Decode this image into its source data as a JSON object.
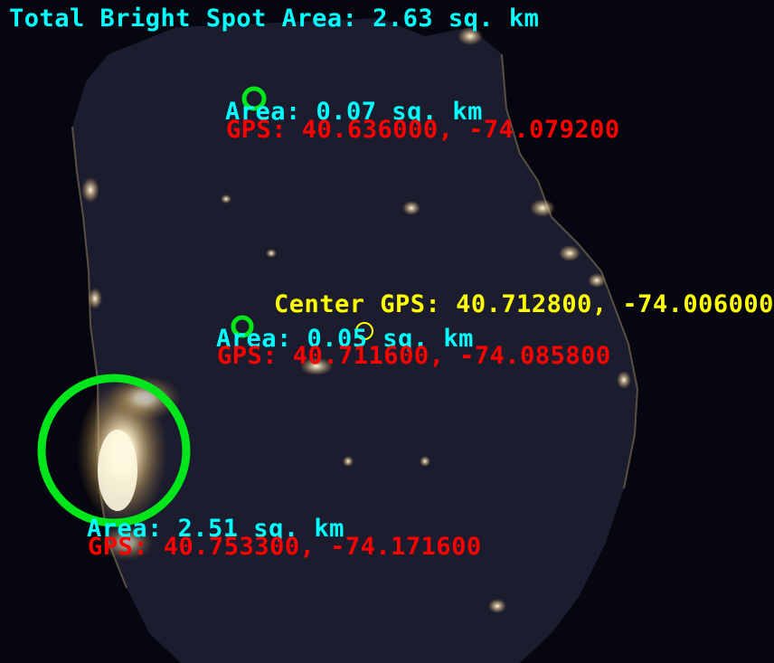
{
  "colors": {
    "background": "#05060f",
    "land": "#1b1c2e",
    "city_light": "#ffeec0",
    "spot_circle": "#00e61a",
    "center_marker": "#ffff00",
    "area_text": "#00ffff",
    "gps_text": "#ff0000",
    "center_text": "#ffff00"
  },
  "total_area_label": "Total Bright Spot Area: 2.63 sq. km",
  "center": {
    "label": "Center GPS: 40.712800, -74.006000"
  },
  "spots": [
    {
      "area_label": "Area: 0.07 sq. km",
      "gps_label": "GPS: 40.636000, -74.079200"
    },
    {
      "area_label": "Area: 0.05 sq. km",
      "gps_label": "GPS: 40.711600, -74.085800"
    },
    {
      "area_label": "Area: 2.51 sq. km",
      "gps_label": "GPS: 40.753300, -74.171600"
    }
  ]
}
